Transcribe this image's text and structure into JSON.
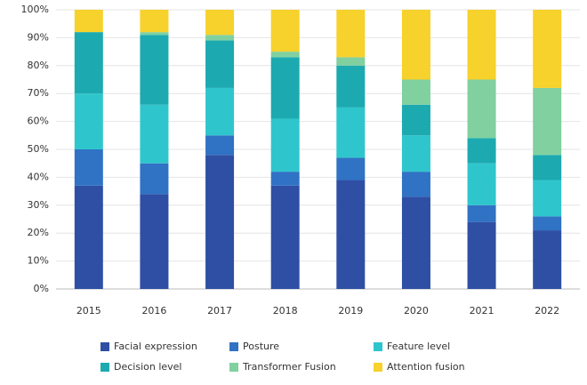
{
  "chart_data": {
    "type": "stacked_bar",
    "categories": [
      "2015",
      "2016",
      "2017",
      "2018",
      "2019",
      "2020",
      "2021",
      "2022"
    ],
    "series": [
      {
        "name": "Facial expression",
        "color": "#2e4fa3",
        "values": [
          37,
          34,
          48,
          37,
          39,
          33,
          24,
          21
        ]
      },
      {
        "name": "Posture",
        "color": "#3072c4",
        "values": [
          13,
          11,
          7,
          5,
          8,
          9,
          6,
          5
        ]
      },
      {
        "name": "Feature level",
        "color": "#2ec6cc",
        "values": [
          20,
          21,
          17,
          19,
          18,
          13,
          15,
          13
        ]
      },
      {
        "name": "Decision level",
        "color": "#1caab0",
        "values": [
          22,
          25,
          17,
          22,
          15,
          11,
          9,
          9
        ]
      },
      {
        "name": "Transformer Fusion",
        "color": "#80d0a0",
        "values": [
          0,
          1,
          2,
          2,
          3,
          9,
          21,
          24
        ]
      },
      {
        "name": "Attention fusion",
        "color": "#f7d12c",
        "values": [
          8,
          8,
          9,
          15,
          17,
          25,
          25,
          28
        ]
      }
    ],
    "ylim": [
      0,
      100
    ],
    "yticks": [
      {
        "value": 0,
        "label": "0%"
      },
      {
        "value": 10,
        "label": "10%"
      },
      {
        "value": 20,
        "label": "20%"
      },
      {
        "value": 30,
        "label": "30%"
      },
      {
        "value": 40,
        "label": "40%"
      },
      {
        "value": 50,
        "label": "50%"
      },
      {
        "value": 60,
        "label": "60%"
      },
      {
        "value": 70,
        "label": "70%"
      },
      {
        "value": 80,
        "label": "80%"
      },
      {
        "value": 90,
        "label": "90%"
      },
      {
        "value": 100,
        "label": "100%"
      }
    ],
    "grid": true
  }
}
